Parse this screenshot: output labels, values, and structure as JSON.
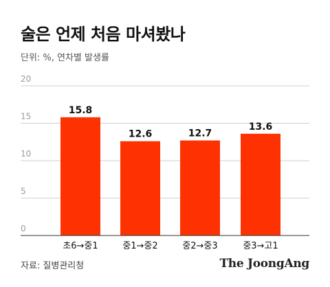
{
  "header": {
    "title": "술은 언제 처음 마셔봤나",
    "subtitle": "단위: %, 연차별 발생률"
  },
  "footer": {
    "source": "자료: 질병관리청",
    "logo": "The JoongAng"
  },
  "colors": {
    "bar": "#fe3200",
    "grid": "#cfcfcf",
    "tick_text": "#999999",
    "label_text": "#111111"
  },
  "chart_data": {
    "type": "bar",
    "title": "술은 언제 처음 마셔봤나",
    "subtitle": "단위: %, 연차별 발생률",
    "categories": [
      "초6→중1",
      "중1→중2",
      "중2→중3",
      "중3→고1"
    ],
    "values": [
      15.8,
      12.6,
      12.7,
      13.6
    ],
    "value_labels": [
      "15.8",
      "12.6",
      "12.7",
      "13.6"
    ],
    "ylim": [
      0,
      20
    ],
    "yticks": [
      0,
      5,
      10,
      15,
      20
    ],
    "grid": true
  }
}
